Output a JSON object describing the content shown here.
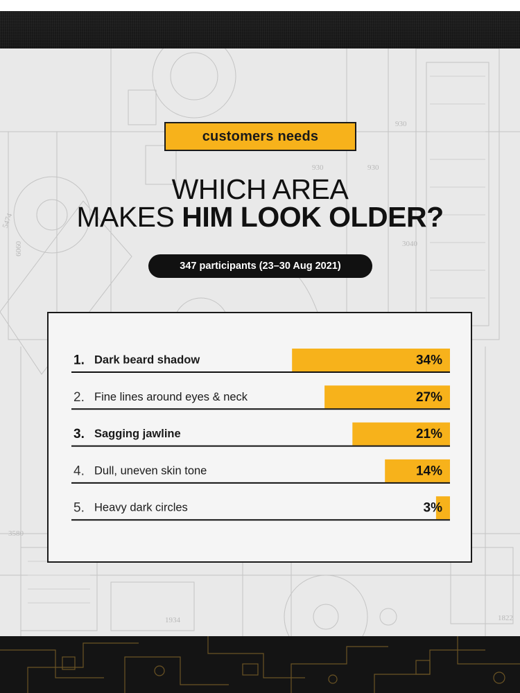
{
  "header": {
    "tag": "customers needs",
    "title_line1": "WHICH AREA",
    "title_line2_regular": "MAKES ",
    "title_line2_bold": "HIM LOOK OLDER?",
    "participants": "347 participants (23–30 Aug 2021)"
  },
  "background": {
    "blueprint_numbers": [
      "930",
      "930",
      "930",
      "3040",
      "3580",
      "1934",
      "1822",
      "6060",
      "5474"
    ]
  },
  "colors": {
    "accent": "#f7b21b",
    "dark": "#111111",
    "card": "#f5f5f5"
  },
  "chart_data": {
    "type": "bar",
    "orientation": "horizontal",
    "categories": [
      "Dark beard shadow",
      "Fine lines around eyes & neck",
      "Sagging jawline",
      "Dull, uneven skin tone",
      "Heavy dark circles"
    ],
    "ranks": [
      "1.",
      "2.",
      "3.",
      "4.",
      "5."
    ],
    "values": [
      34,
      27,
      21,
      14,
      3
    ],
    "value_labels": [
      "34%",
      "27%",
      "21%",
      "14%",
      "3%"
    ],
    "bold_rows": [
      true,
      false,
      true,
      false,
      false
    ],
    "unit": "%",
    "xlim": [
      0,
      100
    ]
  }
}
